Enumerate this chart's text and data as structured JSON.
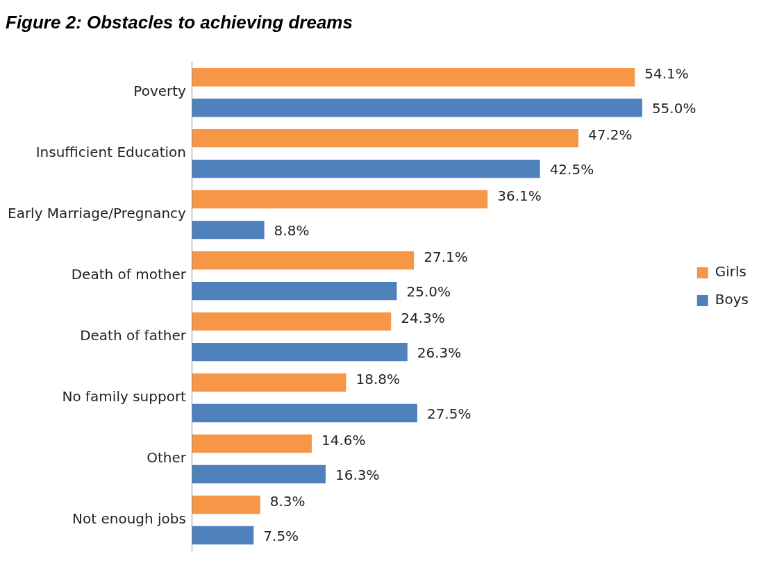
{
  "chart_data": {
    "type": "bar",
    "orientation": "horizontal",
    "title": "Figure 2: Obstacles to achieving dreams",
    "categories": [
      "Poverty",
      "Insufficient Education",
      "Early Marriage/Pregnancy",
      "Death of mother",
      "Death of father",
      "No family support",
      "Other",
      "Not enough jobs"
    ],
    "series": [
      {
        "name": "Girls",
        "color": "#f79646",
        "values": [
          54.1,
          47.2,
          36.1,
          27.1,
          24.3,
          18.8,
          14.6,
          8.3
        ],
        "value_labels": [
          "54.1%",
          "47.2%",
          "36.1%",
          "27.1%",
          "24.3%",
          "18.8%",
          "14.6%",
          "8.3%"
        ]
      },
      {
        "name": "Boys",
        "color": "#4f81bd",
        "values": [
          55.0,
          42.5,
          8.8,
          25.0,
          26.3,
          27.5,
          16.3,
          7.5
        ],
        "value_labels": [
          "55.0%",
          "42.5%",
          "8.8%",
          "25.0%",
          "26.3%",
          "27.5%",
          "16.3%",
          "7.5%"
        ]
      }
    ],
    "legend": "right",
    "grid": false
  }
}
